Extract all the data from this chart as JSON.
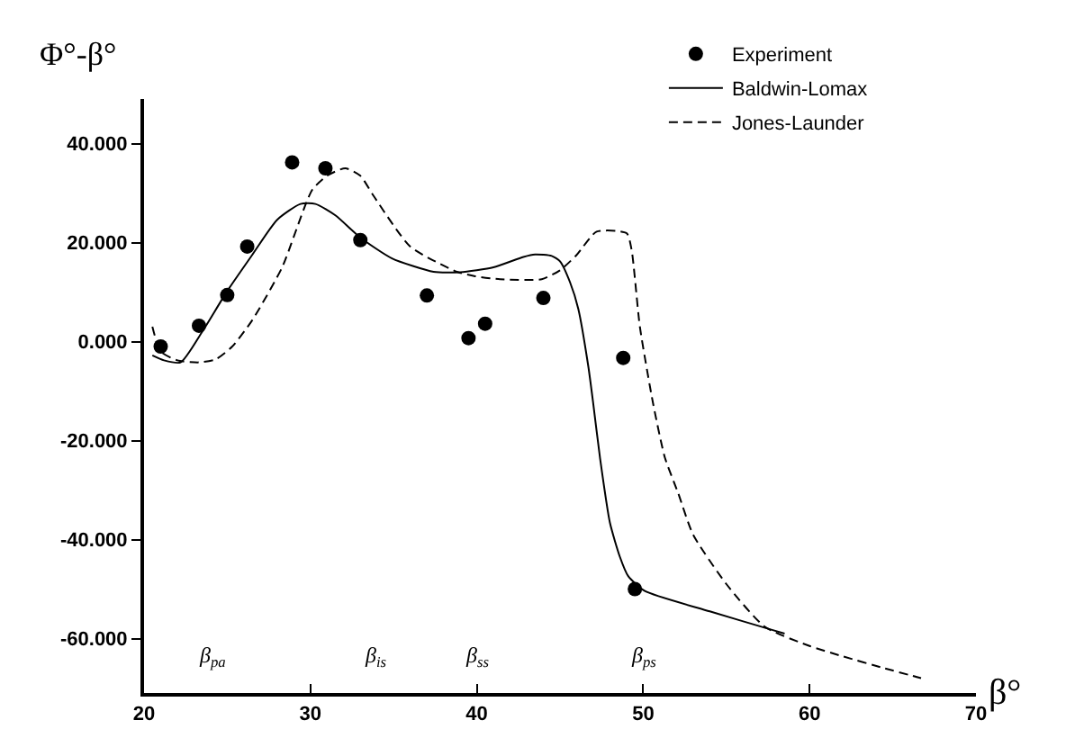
{
  "chart_data": {
    "type": "line",
    "xlabel": "β°",
    "ylabel": "Φ°-β°",
    "xlim": [
      20,
      70
    ],
    "xticks": [
      20,
      30,
      40,
      50,
      60,
      70
    ],
    "ylim": [
      -71,
      49
    ],
    "yticks": [
      {
        "value": 40,
        "label": "40.000"
      },
      {
        "value": 20,
        "label": "20.000"
      },
      {
        "value": 0,
        "label": "0.000"
      },
      {
        "value": -20,
        "label": "-20.000"
      },
      {
        "value": -40,
        "label": "-40.000"
      },
      {
        "value": -60,
        "label": "-60.000"
      }
    ],
    "legend": "top right",
    "series": [
      {
        "name": "Experiment",
        "type": "scatter",
        "marker": "circle",
        "color": "#000000",
        "x": [
          21.0,
          23.3,
          25.0,
          26.2,
          28.9,
          30.9,
          33.0,
          37.0,
          39.5,
          40.5,
          44.0,
          48.8,
          49.5
        ],
        "values": [
          -1,
          3.2,
          9.4,
          19.2,
          36.2,
          35,
          20.5,
          9.3,
          0.7,
          3.6,
          8.8,
          -3.3,
          -50
        ]
      },
      {
        "name": "Baldwin-Lomax",
        "line_style": "solid",
        "color": "#000000",
        "x": [
          20.5,
          21.2,
          22.2,
          23.5,
          25.0,
          26.5,
          28.0,
          29.4,
          30.3,
          31.5,
          33.0,
          34.9,
          37.4,
          39.0,
          41.0,
          42.8,
          43.5,
          44.5,
          45.0,
          45.6,
          46.1,
          46.7,
          47.0,
          47.4,
          48.0,
          48.6,
          49.1,
          50.1,
          54.0,
          57.7,
          58.5
        ],
        "values": [
          -2.8,
          -3.8,
          -4.2,
          2.0,
          10.2,
          17.5,
          24.6,
          27.8,
          27.8,
          25.5,
          21,
          16.8,
          14.1,
          14.0,
          15,
          17.1,
          17.6,
          17.3,
          16.2,
          12.0,
          6.6,
          -5.0,
          -12.6,
          -23.4,
          -36.6,
          -43.5,
          -47.4,
          -50.4,
          -54.5,
          -58.2,
          -59.0
        ]
      },
      {
        "name": "Jones-Launder",
        "line_style": "dashed",
        "color": "#000000",
        "x": [
          20.5,
          21.0,
          22.0,
          23.3,
          24.3,
          25.3,
          26.5,
          28.3,
          30.1,
          31.0,
          32.1,
          33.0,
          33.8,
          36.0,
          38.8,
          39.9,
          41.4,
          43.9,
          45.0,
          46.0,
          47.2,
          49.0,
          49.3,
          49.8,
          50.6,
          51.3,
          52.1,
          53.0,
          55.0,
          57.3,
          60.0,
          62.0,
          64.5,
          66.7
        ],
        "values": [
          3,
          -2.0,
          -3.8,
          -4.2,
          -3.6,
          -1.0,
          4.3,
          15,
          30.6,
          33.5,
          35,
          33.5,
          29.4,
          19.2,
          14.1,
          13.2,
          12.6,
          12.6,
          14.4,
          17.5,
          22.2,
          21.9,
          18.6,
          3.0,
          -12.6,
          -23.4,
          -30.6,
          -39,
          -49.0,
          -57.6,
          -61.5,
          -63.6,
          -66.0,
          -68
        ]
      }
    ],
    "annotations": [
      "β$_{pa}$",
      "β$_{is}$",
      "β$_{ss}$",
      "β$_{ps}$"
    ]
  }
}
